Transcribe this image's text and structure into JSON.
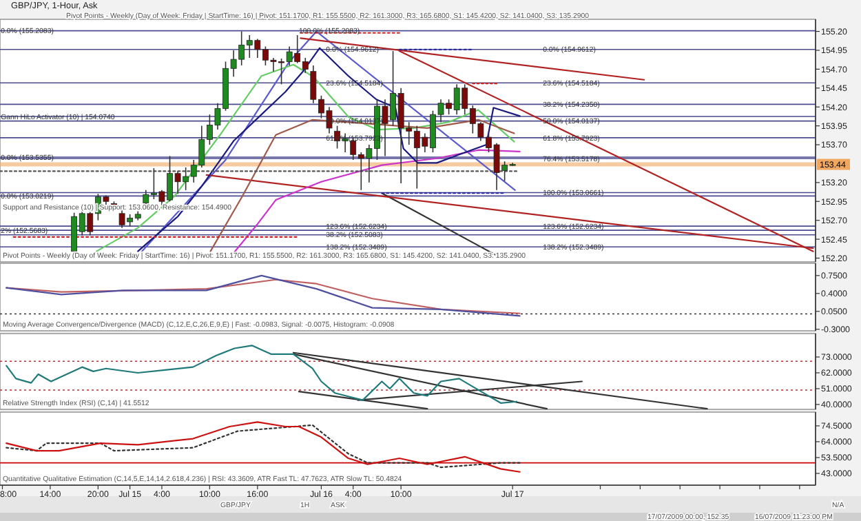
{
  "chart_data": [
    {
      "type": "candlestick",
      "title": "GBP/JPY, 1-Hour, Ask",
      "tick_labels": "y",
      "xlim": [
        "2009-07-14T07:42",
        "2009-07-18T14:00"
      ],
      "ylim": [
        152.15,
        155.36
      ],
      "yticks": [
        {
          "value": 155.2,
          "label": "155.20"
        },
        {
          "value": 154.95,
          "label": "154.95"
        },
        {
          "value": 154.7,
          "label": "154.70"
        },
        {
          "value": 154.45,
          "label": "154.45"
        },
        {
          "value": 154.2,
          "label": "154.20"
        },
        {
          "value": 153.95,
          "label": "153.95"
        },
        {
          "value": 153.7,
          "label": "153.70"
        },
        {
          "value": 153.2,
          "label": "153.20"
        },
        {
          "value": 152.95,
          "label": "152.95"
        },
        {
          "value": 152.7,
          "label": "152.70"
        },
        {
          "value": 152.45,
          "label": "152.45"
        },
        {
          "value": 152.2,
          "label": "152.20"
        }
      ],
      "x": [
        "2009-07-14T17:00",
        "2009-07-14T18:00",
        "2009-07-14T19:00",
        "2009-07-14T20:00",
        "2009-07-14T21:00",
        "2009-07-14T22:00",
        "2009-07-14T23:00",
        "2009-07-15T00:00",
        "2009-07-15T01:00",
        "2009-07-15T02:00",
        "2009-07-15T03:00",
        "2009-07-15T04:00",
        "2009-07-15T05:00",
        "2009-07-15T06:00",
        "2009-07-15T07:00",
        "2009-07-15T08:00",
        "2009-07-15T09:00",
        "2009-07-15T10:00",
        "2009-07-15T11:00",
        "2009-07-15T12:00",
        "2009-07-15T13:00",
        "2009-07-15T14:00",
        "2009-07-15T15:00",
        "2009-07-15T16:00",
        "2009-07-15T17:00",
        "2009-07-15T18:00",
        "2009-07-15T19:00",
        "2009-07-15T20:00",
        "2009-07-15T21:00",
        "2009-07-15T22:00",
        "2009-07-15T23:00",
        "2009-07-16T00:00",
        "2009-07-16T01:00",
        "2009-07-16T02:00",
        "2009-07-16T03:00",
        "2009-07-16T04:00",
        "2009-07-16T05:00",
        "2009-07-16T06:00",
        "2009-07-16T07:00",
        "2009-07-16T08:00",
        "2009-07-16T09:00",
        "2009-07-16T10:00",
        "2009-07-16T11:00",
        "2009-07-16T12:00",
        "2009-07-16T13:00",
        "2009-07-16T14:00",
        "2009-07-16T15:00",
        "2009-07-16T16:00",
        "2009-07-16T17:00",
        "2009-07-16T18:00",
        "2009-07-16T19:00",
        "2009-07-16T20:00",
        "2009-07-16T21:00",
        "2009-07-16T22:00",
        "2009-07-16T23:00",
        "2009-07-17T00:00"
      ],
      "ohlc": [
        [
          152.29,
          152.8,
          152.28,
          152.75
        ],
        [
          152.55,
          152.85,
          152.5,
          152.79
        ],
        [
          152.79,
          152.85,
          152.5,
          152.55
        ],
        [
          152.79,
          153.05,
          152.7,
          153.01
        ],
        [
          153.01,
          153.03,
          152.85,
          152.95
        ],
        [
          152.92,
          152.95,
          152.85,
          152.9
        ],
        [
          152.79,
          152.85,
          152.6,
          152.64
        ],
        [
          152.68,
          152.78,
          152.62,
          152.73
        ],
        [
          152.73,
          152.82,
          152.7,
          152.78
        ],
        [
          152.93,
          153.1,
          152.85,
          153.04
        ],
        [
          153.04,
          153.39,
          152.98,
          153.06
        ],
        [
          153.08,
          153.1,
          152.9,
          152.95
        ],
        [
          152.97,
          153.55,
          152.95,
          153.32
        ],
        [
          153.32,
          153.35,
          153.05,
          153.21
        ],
        [
          153.21,
          153.4,
          153.1,
          153.28
        ],
        [
          153.28,
          153.5,
          153.2,
          153.43
        ],
        [
          153.43,
          153.95,
          153.4,
          153.77
        ],
        [
          153.77,
          154.1,
          153.7,
          153.96
        ],
        [
          153.96,
          154.25,
          153.9,
          154.18
        ],
        [
          154.18,
          154.8,
          154.15,
          154.71
        ],
        [
          154.71,
          154.95,
          154.6,
          154.83
        ],
        [
          154.83,
          155.2,
          154.75,
          155.02
        ],
        [
          155.02,
          155.15,
          154.85,
          155.08
        ],
        [
          155.08,
          155.1,
          154.85,
          154.96
        ],
        [
          154.96,
          155.0,
          154.75,
          154.82
        ],
        [
          154.82,
          154.85,
          154.67,
          154.8
        ],
        [
          154.8,
          154.84,
          154.5,
          154.79
        ],
        [
          154.8,
          155.0,
          154.75,
          154.93
        ],
        [
          154.91,
          155.15,
          154.78,
          154.8
        ],
        [
          154.8,
          154.85,
          154.65,
          154.7
        ],
        [
          154.67,
          154.75,
          154.25,
          154.3
        ],
        [
          154.3,
          154.35,
          154.05,
          154.12
        ],
        [
          154.15,
          154.2,
          153.85,
          153.92
        ],
        [
          153.88,
          153.95,
          153.65,
          153.75
        ],
        [
          153.75,
          153.85,
          153.6,
          153.78
        ],
        [
          153.75,
          153.8,
          153.5,
          153.57
        ],
        [
          153.57,
          153.6,
          153.1,
          153.52
        ],
        [
          153.52,
          153.7,
          153.2,
          153.65
        ],
        [
          153.65,
          154.3,
          153.5,
          154.21
        ],
        [
          154.21,
          154.3,
          153.55,
          153.98
        ],
        [
          154.03,
          154.94,
          153.95,
          154.38
        ],
        [
          154.38,
          154.45,
          153.19,
          153.92
        ],
        [
          153.92,
          154.0,
          153.7,
          153.88
        ],
        [
          153.88,
          153.95,
          153.12,
          153.66
        ],
        [
          153.8,
          153.85,
          153.6,
          153.68
        ],
        [
          153.66,
          154.15,
          153.6,
          154.1
        ],
        [
          154.1,
          154.3,
          154.0,
          154.25
        ],
        [
          154.25,
          154.3,
          154.1,
          154.18
        ],
        [
          154.16,
          154.5,
          154.1,
          154.45
        ],
        [
          154.45,
          154.5,
          154.1,
          154.18
        ],
        [
          154.18,
          154.22,
          153.85,
          153.98
        ],
        [
          153.98,
          154.0,
          153.75,
          153.8
        ],
        [
          153.8,
          153.85,
          153.6,
          153.66
        ],
        [
          153.7,
          153.72,
          153.1,
          153.33
        ],
        [
          153.36,
          153.48,
          153.22,
          153.43
        ],
        [
          153.43,
          153.46,
          153.42,
          153.44
        ]
      ],
      "series": [
        {
          "type": "line",
          "color": "#5a5acc",
          "x": [
            "2009-07-15T01:30",
            "2009-07-15T12:00",
            "2009-07-15T20:00",
            "2009-07-15T23:24",
            "2009-07-17T00:18"
          ],
          "values": [
            152.29,
            153.5,
            154.8,
            155.2,
            153.1
          ]
        },
        {
          "type": "line",
          "color": "#333333",
          "x": [
            "2009-07-16T07:36",
            "2009-07-16T21:54"
          ],
          "values": [
            153.06,
            152.24
          ]
        },
        {
          "type": "line",
          "color": "#b22222",
          "x": [
            "2009-07-15T21:24",
            "2009-07-17T16:30"
          ],
          "values": [
            155.11,
            154.56
          ]
        },
        {
          "type": "line",
          "color": "#b22222",
          "x": [
            "2009-07-16T09:48",
            "2009-07-18T13:42"
          ],
          "values": [
            154.94,
            152.29
          ]
        },
        {
          "type": "line",
          "color": "#b22222",
          "x": [
            "2009-07-15T09:36",
            "2009-07-18T13:42"
          ],
          "values": [
            153.3,
            152.33
          ]
        },
        {
          "type": "line",
          "color": "#66cc66",
          "x": [
            "2009-07-14T19:48",
            "2009-07-15T01:00",
            "2009-07-15T05:36",
            "2009-07-15T11:18",
            "2009-07-15T16:30",
            "2009-07-15T20:30",
            "2009-07-15T23:00",
            "2009-07-16T03:24",
            "2009-07-16T07:00",
            "2009-07-16T11:36",
            "2009-07-16T16:00",
            "2009-07-16T19:42",
            "2009-07-17T00:12"
          ],
          "values": [
            152.29,
            152.6,
            153.02,
            153.83,
            154.61,
            154.76,
            154.6,
            154.07,
            153.9,
            153.92,
            154.0,
            154.16,
            153.74
          ]
        },
        {
          "type": "line",
          "color": "#a05a4a",
          "x": [
            "2009-07-15T10:06",
            "2009-07-15T14:00",
            "2009-07-15T18:18",
            "2009-07-15T22:54",
            "2009-07-16T05:48",
            "2009-07-16T13:18",
            "2009-07-16T19:42",
            "2009-07-17T00:12"
          ],
          "values": [
            152.29,
            153.0,
            153.83,
            154.03,
            153.98,
            153.92,
            154.03,
            153.85
          ]
        },
        {
          "type": "line",
          "color": "#cc33cc",
          "x": [
            "2009-07-15T13:06",
            "2009-07-15T16:00",
            "2009-07-15T18:18",
            "2009-07-16T00:00",
            "2009-07-16T07:36",
            "2009-07-16T14:30",
            "2009-07-16T19:42",
            "2009-07-17T00:54"
          ],
          "values": [
            152.28,
            152.65,
            152.97,
            153.21,
            153.43,
            153.52,
            153.63,
            153.61
          ]
        },
        {
          "type": "line",
          "color": "#1a1a80",
          "x": [
            "2009-07-15T01:00",
            "2009-07-15T06:00",
            "2009-07-15T09:00",
            "2009-07-15T13:00",
            "2009-07-15T16:30",
            "2009-07-15T19:30",
            "2009-07-15T21:42",
            "2009-07-15T23:48",
            "2009-07-16T03:24",
            "2009-07-16T06:54",
            "2009-07-16T09:18",
            "2009-07-16T10:18",
            "2009-07-16T12:06",
            "2009-07-16T14:30",
            "2009-07-16T17:18",
            "2009-07-16T20:42",
            "2009-07-16T21:36",
            "2009-07-17T00:54"
          ],
          "values": [
            152.29,
            152.75,
            153.15,
            153.75,
            154.1,
            154.4,
            154.67,
            154.98,
            154.61,
            154.3,
            154.19,
            153.65,
            153.46,
            153.46,
            153.57,
            153.7,
            154.19,
            154.08
          ]
        },
        {
          "type": "line",
          "color": "#cc2222",
          "line_style": "dotted",
          "x": [
            "2009-07-15T21:24",
            "2009-07-16T09:48"
          ],
          "values": [
            155.18,
            155.18
          ]
        },
        {
          "type": "line",
          "color": "#cc2222",
          "line_style": "dotted",
          "x": [
            "2009-07-14T09:24",
            "2009-07-15T20:54"
          ],
          "values": [
            152.48,
            152.48
          ]
        },
        {
          "type": "line",
          "color": "#2a2aa0",
          "line_style": "dotted",
          "x": [
            "2009-07-16T09:48",
            "2009-07-16T18:48"
          ],
          "values": [
            154.96,
            154.96
          ]
        },
        {
          "type": "line",
          "color": "#cc2222",
          "line_style": "dotted",
          "x": [
            "2009-07-16T19:00",
            "2009-07-16T22:00"
          ],
          "values": [
            154.51,
            154.51
          ]
        },
        {
          "type": "line",
          "color": "#2a2aa0",
          "line_style": "dotted",
          "x": [
            "2009-07-16T07:36",
            "2009-07-16T22:48"
          ],
          "values": [
            153.06,
            153.06
          ]
        },
        {
          "type": "line",
          "color": "#555555",
          "line_style": "dotted",
          "x": [
            "2009-07-14T07:42",
            "2009-07-17T00:30"
          ],
          "values": [
            153.35,
            153.35
          ]
        }
      ],
      "ref_lines": [
        {
          "axis": "y",
          "value": 153.44,
          "label": "153.44",
          "color": "#f0a860"
        },
        {
          "axis": "y",
          "value": 155.2083,
          "color": "#4a4a90"
        },
        {
          "axis": "y",
          "value": 154.9612,
          "color": "#4a4a90"
        },
        {
          "axis": "y",
          "value": 154.5184,
          "color": "#4a4a90"
        },
        {
          "axis": "y",
          "value": 154.235,
          "color": "#4a4a90"
        },
        {
          "axis": "y",
          "value": 154.074,
          "color": "#4a4a90"
        },
        {
          "axis": "y",
          "value": 154.0137,
          "color": "#4a4a90"
        },
        {
          "axis": "y",
          "value": 153.7923,
          "color": "#4a4a90"
        },
        {
          "axis": "y",
          "value": 153.5355,
          "color": "#4a4a90"
        },
        {
          "axis": "y",
          "value": 153.5178,
          "color": "#4a4a90"
        },
        {
          "axis": "y",
          "value": 153.0661,
          "color": "#4a4a90"
        },
        {
          "axis": "y",
          "value": 153.0219,
          "color": "#4a4a90"
        },
        {
          "axis": "y",
          "value": 152.6234,
          "color": "#4a4a90"
        },
        {
          "axis": "y",
          "value": 152.5683,
          "color": "#4a4a90"
        },
        {
          "axis": "y",
          "value": 152.5083,
          "color": "#4a4a90"
        },
        {
          "axis": "y",
          "value": 152.3489,
          "color": "#4a4a90"
        }
      ],
      "annotations": [
        "Pivot Points - Weekly (Day of Week: Friday | StartTime: 16) | Pivot: 151.1700, R1: 155.5500, R2: 161.3000, R3: 165.6800, S1: 145.4200, S2: 141.0400, S3: 135.2900",
        "Pivot Points - Weekly (Day of Week: Friday | StartTime: 16) | Pivot: 151.1700, R1: 155.5500, R2: 161.3000, R3: 165.6800, S1: 145.4200, S2: 141.0400, S3: 135.2900",
        "Support and Resistance (10) | Support: 153.0600, Resistance: 154.4900",
        {
          "text": "Gann HiLo Activator (10) | 154.0740",
          "x": "2009-07-14T07:48",
          "y": 154.074
        },
        {
          "text": "0.0% (155.2083)",
          "x": "2009-07-14T07:48",
          "y": 155.2083
        },
        {
          "text": "0.0% (153.5355)",
          "x": "2009-07-14T07:48",
          "y": 153.5355
        },
        {
          "text": "0.0% (153.0219)",
          "x": "2009-07-14T07:48",
          "y": 153.0219
        },
        {
          "text": "2% (152.5683)",
          "x": "2009-07-14T07:48",
          "y": 152.5683
        },
        {
          "text": "100.0% (155.2083)",
          "x": "2009-07-15T21:12",
          "y": 155.2083
        },
        {
          "text": "0.0% (154.9612)",
          "x": "2009-07-16T00:36",
          "y": 154.9612
        },
        {
          "text": "23.6% (154.5184)",
          "x": "2009-07-16T00:36",
          "y": 154.5184
        },
        {
          "text": "50.0% (154.0137)",
          "x": "2009-07-16T00:36",
          "y": 154.0137
        },
        {
          "text": "61.8% (153.7923)",
          "x": "2009-07-16T00:36",
          "y": 153.7923
        },
        {
          "text": "123.6% (152.6234)",
          "x": "2009-07-16T00:36",
          "y": 152.6234
        },
        {
          "text": "38.2% (152.5083)",
          "x": "2009-07-16T00:36",
          "y": 152.5083
        },
        {
          "text": "138.2% (152.3489)",
          "x": "2009-07-16T00:36",
          "y": 152.3489
        },
        {
          "text": "0.0% (154.9612)",
          "x": "2009-07-17T03:48",
          "y": 154.9612
        },
        {
          "text": "23.6% (154.5184)",
          "x": "2009-07-17T03:48",
          "y": 154.5184
        },
        {
          "text": "38.2% (154.2350)",
          "x": "2009-07-17T03:48",
          "y": 154.235
        },
        {
          "text": "50.0% (154.0137)",
          "x": "2009-07-17T03:48",
          "y": 154.0137
        },
        {
          "text": "61.8% (153.7923)",
          "x": "2009-07-17T03:48",
          "y": 153.7923
        },
        {
          "text": "76.4% (153.5178)",
          "x": "2009-07-17T03:48",
          "y": 153.5178
        },
        {
          "text": "100.0% (153.0661)",
          "x": "2009-07-17T03:48",
          "y": 153.0661
        },
        {
          "text": "123.6% (152.6234)",
          "x": "2009-07-17T03:48",
          "y": 152.6234
        },
        {
          "text": "138.2% (152.3489)",
          "x": "2009-07-17T03:48",
          "y": 152.3489
        }
      ]
    },
    {
      "type": "line",
      "title": "Moving Average Convergence/Divergence (MACD) (C,12,E,C,26,E,9,E) | Fast: -0.0983, Signal: -0.0075, Histogram: -0.0908",
      "tick_labels": "y",
      "xlim": [
        "2009-07-14T07:42",
        "2009-07-18T14:00"
      ],
      "ylim": [
        -0.33,
        0.99
      ],
      "yticks": [
        {
          "value": 0.75,
          "label": "0.7500"
        },
        {
          "value": 0.4,
          "label": "0.4000"
        },
        {
          "value": 0.05,
          "label": "0.0500"
        },
        {
          "value": -0.3,
          "label": "-0.3000"
        }
      ],
      "ref_lines": [
        {
          "axis": "y",
          "value": 0,
          "color": "#333333",
          "line_style": "dotted"
        }
      ],
      "series": [
        {
          "color": "#c06060",
          "x": [
            "2009-07-14T08:30",
            "2009-07-14T15:24",
            "2009-07-15T01:00",
            "2009-07-15T09:36",
            "2009-07-15T18:18",
            "2009-07-15T23:24",
            "2009-07-16T06:24",
            "2009-07-16T15:00",
            "2009-07-17T00:54"
          ],
          "values": [
            0.51,
            0.43,
            0.46,
            0.49,
            0.67,
            0.59,
            0.3,
            0.09,
            0.01
          ]
        },
        {
          "color": "#5050a0",
          "x": [
            "2009-07-14T08:30",
            "2009-07-14T15:24",
            "2009-07-14T23:12",
            "2009-07-15T09:36",
            "2009-07-15T16:30",
            "2009-07-15T23:24",
            "2009-07-16T06:24",
            "2009-07-16T15:00",
            "2009-07-17T00:54"
          ],
          "values": [
            0.51,
            0.38,
            0.46,
            0.46,
            0.75,
            0.49,
            0.12,
            0.09,
            -0.04
          ]
        }
      ]
    },
    {
      "type": "line",
      "title": "Relative Strength Index (RSI) (C,14) | 41.5512",
      "tick_labels": "y",
      "xlim": [
        "2009-07-14T07:42",
        "2009-07-18T14:00"
      ],
      "ylim": [
        36.6,
        89.3
      ],
      "yticks": [
        {
          "value": 73,
          "label": "73.0000"
        },
        {
          "value": 62,
          "label": "62.0000"
        },
        {
          "value": 51,
          "label": "51.0000"
        },
        {
          "value": 40,
          "label": "40.0000"
        }
      ],
      "ref_lines": [
        {
          "axis": "y",
          "value": 70,
          "color": "#b03030",
          "line_style": "dotted"
        },
        {
          "axis": "y",
          "value": 50,
          "color": "#b03030",
          "line_style": "dotted"
        }
      ],
      "series": [
        {
          "color": "#333333",
          "x": [
            "2009-07-15T20:30",
            "2009-07-18T00:24"
          ],
          "values": [
            76,
            37
          ]
        },
        {
          "color": "#333333",
          "x": [
            "2009-07-15T20:30",
            "2009-07-17T04:18"
          ],
          "values": [
            75,
            37
          ]
        },
        {
          "color": "#333333",
          "x": [
            "2009-07-15T21:12",
            "2009-07-16T13:18"
          ],
          "values": [
            49,
            37
          ]
        },
        {
          "color": "#333333",
          "x": [
            "2009-07-16T04:36",
            "2009-07-17T08:42"
          ],
          "values": [
            43,
            56
          ]
        },
        {
          "color": "#1f7a7a",
          "x": [
            "2009-07-14T08:30",
            "2009-07-14T09:42",
            "2009-07-14T11:36",
            "2009-07-14T12:30",
            "2009-07-14T14:06",
            "2009-07-14T18:00",
            "2009-07-14T19:24",
            "2009-07-14T21:00",
            "2009-07-15T01:00",
            "2009-07-15T04:24",
            "2009-07-15T07:54",
            "2009-07-15T10:48",
            "2009-07-15T13:06",
            "2009-07-15T15:18",
            "2009-07-15T17:42",
            "2009-07-15T20:30",
            "2009-07-15T22:54",
            "2009-07-16T00:00",
            "2009-07-16T01:42",
            "2009-07-16T05:12",
            "2009-07-16T07:36",
            "2009-07-16T08:36",
            "2009-07-16T09:48",
            "2009-07-16T11:36",
            "2009-07-16T13:18",
            "2009-07-16T15:00",
            "2009-07-16T17:18",
            "2009-07-16T18:30",
            "2009-07-16T22:30",
            "2009-07-17T00:30"
          ],
          "values": [
            67,
            58,
            55,
            61,
            56,
            66,
            63,
            65,
            62,
            64,
            66,
            74,
            79,
            81,
            75,
            75,
            65,
            56,
            48,
            43,
            56,
            51,
            58,
            48,
            46,
            56,
            58,
            54,
            41,
            42
          ]
        }
      ]
    },
    {
      "type": "line",
      "title": "Quantitative Qualitative Estimation (C,14,5,E,14,14,2.618,4.236) | RSI: 43.3609, ATR Fast TL: 47.7623, ATR Slow TL: 50.4824",
      "xlim": [
        "2009-07-14T07:42",
        "2009-07-18T14:00"
      ],
      "ylim": [
        35.2,
        83.6
      ],
      "yticks": [
        {
          "value": 74.5,
          "label": "74.5000"
        },
        {
          "value": 64,
          "label": "64.0000"
        },
        {
          "value": 53.5,
          "label": "53.5000"
        },
        {
          "value": 43,
          "label": "43.0000"
        }
      ],
      "xticks": [
        {
          "value": "2009-07-14T08:00",
          "label": "8:00"
        },
        {
          "value": "2009-07-14T14:00",
          "label": "14:00"
        },
        {
          "value": "2009-07-14T20:00",
          "label": "20:00"
        },
        {
          "value": "2009-07-15T00:00",
          "label": "Jul 15"
        },
        {
          "value": "2009-07-15T04:00",
          "label": "4:00"
        },
        {
          "value": "2009-07-15T10:00",
          "label": "10:00"
        },
        {
          "value": "2009-07-15T16:00",
          "label": "16:00"
        },
        {
          "value": "2009-07-16T00:00",
          "label": "Jul 16"
        },
        {
          "value": "2009-07-16T04:00",
          "label": "4:00"
        },
        {
          "value": "2009-07-16T10:00",
          "label": "10:00"
        },
        {
          "value": "2009-07-17T00:00",
          "label": "Jul 17"
        },
        {
          "value": "2009-07-17T11:00",
          "label": null
        },
        {
          "value": "2009-07-17T16:00",
          "label": null
        },
        {
          "value": "2009-07-17T21:00",
          "label": null
        },
        {
          "value": "2009-07-18T02:00",
          "label": null
        },
        {
          "value": "2009-07-18T07:00",
          "label": null
        },
        {
          "value": "2009-07-18T12:00",
          "label": null
        }
      ],
      "ref_lines": [
        {
          "axis": "y",
          "value": 50,
          "color": "#cc0000"
        }
      ],
      "series": [
        {
          "color": "#333333",
          "line_style": "dotted",
          "x": [
            "2009-07-14T08:30",
            "2009-07-14T12:18",
            "2009-07-14T13:30",
            "2009-07-14T20:18",
            "2009-07-14T22:00",
            "2009-07-15T07:54",
            "2009-07-15T13:30",
            "2009-07-15T22:54",
            "2009-07-16T03:24",
            "2009-07-16T05:48",
            "2009-07-16T13:18",
            "2009-07-16T15:00",
            "2009-07-16T22:30",
            "2009-07-17T00:54"
          ],
          "values": [
            60,
            58,
            63,
            63,
            58,
            60,
            71,
            75,
            56,
            50,
            50,
            47,
            50,
            50
          ]
        },
        {
          "color": "#cc1111",
          "x": [
            "2009-07-14T08:30",
            "2009-07-14T12:18",
            "2009-07-14T15:06",
            "2009-07-14T20:18",
            "2009-07-15T01:00",
            "2009-07-15T07:54",
            "2009-07-15T12:30",
            "2009-07-15T16:00",
            "2009-07-15T19:30",
            "2009-07-15T21:12",
            "2009-07-16T00:00",
            "2009-07-16T03:24",
            "2009-07-16T05:48",
            "2009-07-16T09:48",
            "2009-07-16T13:18",
            "2009-07-16T18:00",
            "2009-07-16T22:30",
            "2009-07-17T00:54"
          ],
          "values": [
            63,
            58,
            58,
            63,
            62,
            66,
            74,
            77,
            74,
            74,
            67,
            53,
            49,
            53,
            49,
            54,
            46,
            44
          ]
        }
      ],
      "annotations": [
        "GBP/JPY",
        "1H",
        "ASK",
        "N/A",
        "17/07/2009 00:00, 152.35",
        "16/07/2009 11:23:00 PM"
      ]
    }
  ]
}
